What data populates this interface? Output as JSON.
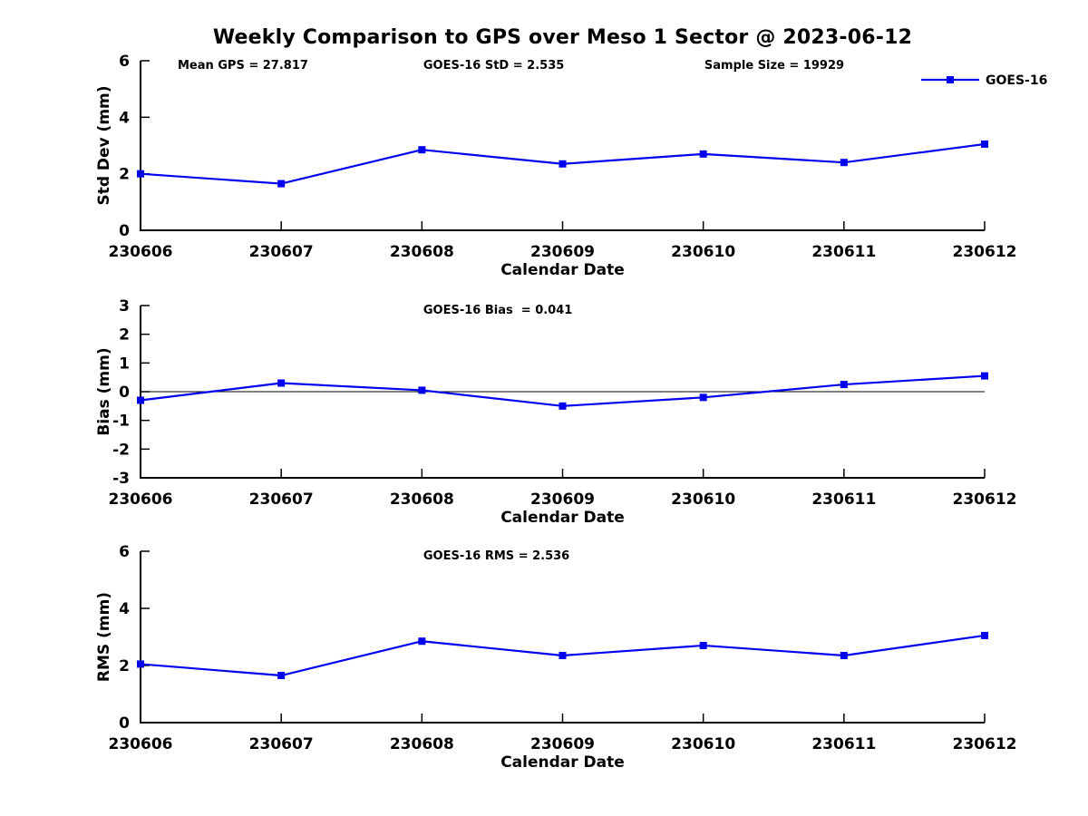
{
  "title": "Weekly Comparison to GPS over Meso 1 Sector @ 2023-06-12",
  "legend": {
    "label": "GOES-16",
    "position": "top-right"
  },
  "colors": {
    "series": "#0000ee",
    "axis": "#000000",
    "background": "#ffffff"
  },
  "chart_data": [
    {
      "type": "line",
      "name": "std-dev",
      "title": "",
      "xlabel": "Calendar Date",
      "ylabel": "Std Dev (mm)",
      "ylim": [
        0,
        6
      ],
      "yticks": [
        0,
        2,
        4,
        6
      ],
      "grid": false,
      "zero_line": false,
      "show_legend": true,
      "categories": [
        "230606",
        "230607",
        "230608",
        "230609",
        "230610",
        "230611",
        "230612"
      ],
      "series": [
        {
          "name": "GOES-16",
          "marker": "square",
          "values": [
            2.0,
            1.65,
            2.85,
            2.35,
            2.7,
            2.4,
            3.05
          ]
        }
      ],
      "annotations": [
        {
          "text": "Mean GPS = 27.817",
          "xfrac": 0.044
        },
        {
          "text": "GOES-16 StD = 2.535",
          "xfrac": 0.335
        },
        {
          "text": "Sample Size = 19929",
          "xfrac": 0.668
        }
      ]
    },
    {
      "type": "line",
      "name": "bias",
      "title": "",
      "xlabel": "Calendar Date",
      "ylabel": "Bias (mm)",
      "ylim": [
        -3,
        3
      ],
      "yticks": [
        -3,
        -2,
        -1,
        0,
        1,
        2,
        3
      ],
      "grid": false,
      "zero_line": true,
      "show_legend": false,
      "categories": [
        "230606",
        "230607",
        "230608",
        "230609",
        "230610",
        "230611",
        "230612"
      ],
      "series": [
        {
          "name": "GOES-16",
          "marker": "square",
          "values": [
            -0.3,
            0.3,
            0.05,
            -0.5,
            -0.2,
            0.25,
            0.55
          ]
        }
      ],
      "annotations": [
        {
          "text": "GOES-16 Bias  = 0.041",
          "xfrac": 0.335
        }
      ]
    },
    {
      "type": "line",
      "name": "rms",
      "title": "",
      "xlabel": "Calendar Date",
      "ylabel": "RMS (mm)",
      "ylim": [
        0,
        6
      ],
      "yticks": [
        0,
        2,
        4,
        6
      ],
      "grid": false,
      "zero_line": false,
      "show_legend": false,
      "categories": [
        "230606",
        "230607",
        "230608",
        "230609",
        "230610",
        "230611",
        "230612"
      ],
      "series": [
        {
          "name": "GOES-16",
          "marker": "square",
          "values": [
            2.05,
            1.65,
            2.85,
            2.35,
            2.7,
            2.35,
            3.05
          ]
        }
      ],
      "annotations": [
        {
          "text": "GOES-16 RMS = 2.536",
          "xfrac": 0.335
        }
      ]
    }
  ]
}
